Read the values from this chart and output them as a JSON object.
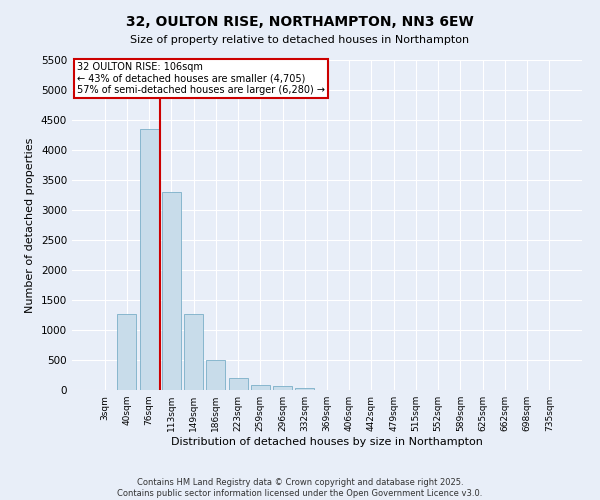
{
  "title": "32, OULTON RISE, NORTHAMPTON, NN3 6EW",
  "subtitle": "Size of property relative to detached houses in Northampton",
  "xlabel": "Distribution of detached houses by size in Northampton",
  "ylabel": "Number of detached properties",
  "bar_color": "#c8dcea",
  "bar_edge_color": "#7aafc8",
  "background_color": "#e8eef8",
  "fig_background_color": "#e8eef8",
  "grid_color": "#ffffff",
  "categories": [
    "3sqm",
    "40sqm",
    "76sqm",
    "113sqm",
    "149sqm",
    "186sqm",
    "223sqm",
    "259sqm",
    "296sqm",
    "332sqm",
    "369sqm",
    "406sqm",
    "442sqm",
    "479sqm",
    "515sqm",
    "552sqm",
    "589sqm",
    "625sqm",
    "662sqm",
    "698sqm",
    "735sqm"
  ],
  "values": [
    0,
    1270,
    4350,
    3300,
    1270,
    500,
    200,
    80,
    60,
    40,
    0,
    0,
    0,
    0,
    0,
    0,
    0,
    0,
    0,
    0,
    0
  ],
  "ylim": [
    0,
    5500
  ],
  "yticks": [
    0,
    500,
    1000,
    1500,
    2000,
    2500,
    3000,
    3500,
    4000,
    4500,
    5000,
    5500
  ],
  "property_line_color": "#cc0000",
  "property_line_index": 2.5,
  "annotation_title": "32 OULTON RISE: 106sqm",
  "annotation_line1": "← 43% of detached houses are smaller (4,705)",
  "annotation_line2": "57% of semi-detached houses are larger (6,280) →",
  "annotation_box_color": "#cc0000",
  "footer_line1": "Contains HM Land Registry data © Crown copyright and database right 2025.",
  "footer_line2": "Contains public sector information licensed under the Open Government Licence v3.0."
}
